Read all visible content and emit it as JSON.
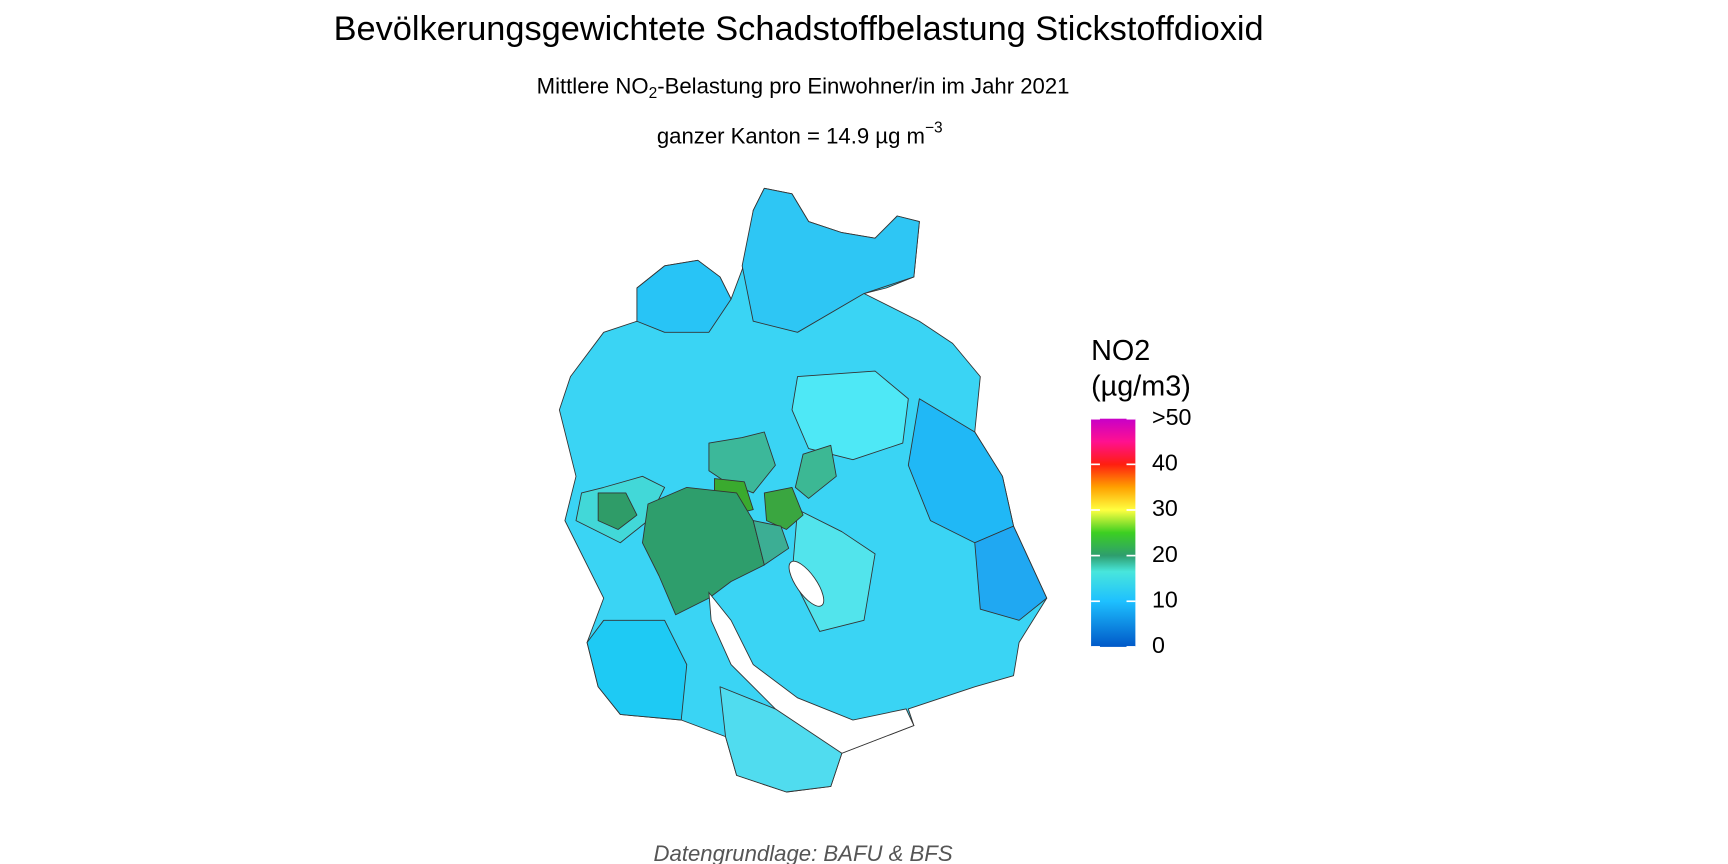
{
  "header": {
    "title": "Bevölkerungsgewichtete Schadstoffbelastung Stickstoffdioxid",
    "subtitle": [
      "Mittlere NO",
      "2",
      "-Belastung pro Einwohner/in im Jahr 2021"
    ],
    "summary": [
      "ganzer Kanton = 14.9 µg m",
      "−3"
    ]
  },
  "legend": {
    "title": [
      "NO2",
      "(µg/m3)"
    ],
    "range": [
      0,
      50
    ],
    "ticks": [
      0,
      10,
      20,
      30,
      40,
      {
        "value": 50,
        "label": ">50"
      }
    ]
  },
  "caption": "Datengrundlage: BAFU & BFS"
}
